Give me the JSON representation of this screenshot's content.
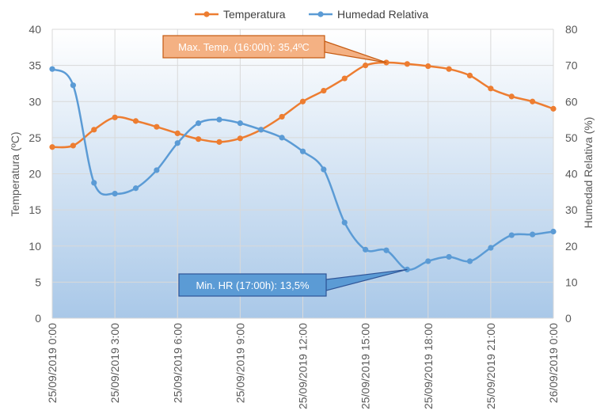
{
  "chart_data": {
    "type": "line",
    "x": [
      "25/09/2019 0:00",
      "25/09/2019 1:00",
      "25/09/2019 2:00",
      "25/09/2019 3:00",
      "25/09/2019 4:00",
      "25/09/2019 5:00",
      "25/09/2019 6:00",
      "25/09/2019 7:00",
      "25/09/2019 8:00",
      "25/09/2019 9:00",
      "25/09/2019 10:00",
      "25/09/2019 11:00",
      "25/09/2019 12:00",
      "25/09/2019 13:00",
      "25/09/2019 14:00",
      "25/09/2019 15:00",
      "25/09/2019 16:00",
      "25/09/2019 17:00",
      "25/09/2019 18:00",
      "25/09/2019 19:00",
      "25/09/2019 20:00",
      "25/09/2019 21:00",
      "25/09/2019 22:00",
      "25/09/2019 23:00",
      "26/09/2019 0:00"
    ],
    "x_ticks": [
      "25/09/2019 0:00",
      "25/09/2019 3:00",
      "25/09/2019 6:00",
      "25/09/2019 9:00",
      "25/09/2019 12:00",
      "25/09/2019 15:00",
      "25/09/2019 18:00",
      "25/09/2019 21:00",
      "26/09/2019 0:00"
    ],
    "series": [
      {
        "name": "Temperatura",
        "axis": "left",
        "color": "#ED7D31",
        "values": [
          23.7,
          23.9,
          26.1,
          27.8,
          27.3,
          26.5,
          25.6,
          24.8,
          24.4,
          24.9,
          26.1,
          27.9,
          30.0,
          31.5,
          33.2,
          35.0,
          35.4,
          35.2,
          34.9,
          34.5,
          33.6,
          31.8,
          30.7,
          30.0,
          29.0
        ]
      },
      {
        "name": "Humedad Relativa",
        "axis": "right",
        "color": "#5B9BD5",
        "values": [
          69.0,
          64.5,
          37.5,
          34.5,
          36.0,
          41.0,
          48.5,
          54.0,
          55.0,
          54.0,
          52.2,
          50.0,
          46.2,
          41.2,
          26.5,
          19.0,
          18.8,
          13.5,
          15.8,
          17.0,
          15.8,
          19.5,
          23.0,
          23.2,
          24.0
        ]
      }
    ],
    "y_left": {
      "label": "Temperatura (ºC)",
      "min": 0,
      "max": 40,
      "ticks": [
        "0",
        "5",
        "10",
        "15",
        "20",
        "25",
        "30",
        "35",
        "40"
      ]
    },
    "y_right": {
      "label": "Humedad Relativa (%)",
      "min": 0,
      "max": 80,
      "ticks": [
        "0",
        "10",
        "20",
        "30",
        "40",
        "50",
        "60",
        "70",
        "80"
      ]
    },
    "legend_position": "top",
    "annotations": [
      {
        "text": "Max. Temp. (16:00h): 35,4ºC",
        "target_index": 16,
        "series": "Temperatura",
        "fill": "#F4B183",
        "border": "#C55A11"
      },
      {
        "text": "Min. HR (17:00h): 13,5%",
        "target_index": 17,
        "series": "Humedad Relativa",
        "fill": "#5B9BD5",
        "border": "#2F5597"
      }
    ],
    "plot_background": "gradient from #FFFFFF (top) to #A9C8E8 (bottom)",
    "grid_color": "#D9D9D9"
  }
}
